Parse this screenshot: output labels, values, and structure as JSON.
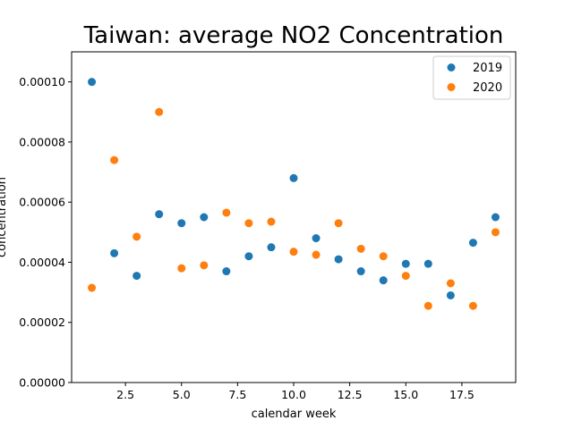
{
  "chart_data": {
    "type": "scatter",
    "title": "Taiwan: average NO2 Concentration",
    "xlabel": "calendar week",
    "ylabel": "concentration",
    "xlim": [
      0.1,
      19.9
    ],
    "ylim": [
      0,
      0.00011
    ],
    "xticks": [
      2.5,
      5.0,
      7.5,
      10.0,
      12.5,
      15.0,
      17.5
    ],
    "xtick_labels": [
      "2.5",
      "5.0",
      "7.5",
      "10.0",
      "12.5",
      "15.0",
      "17.5"
    ],
    "yticks": [
      0,
      2e-05,
      4e-05,
      6e-05,
      8e-05,
      0.0001
    ],
    "ytick_labels": [
      "0.00000",
      "0.00002",
      "0.00004",
      "0.00006",
      "0.00008",
      "0.00010"
    ],
    "grid": false,
    "legend_position": "top-right",
    "series": [
      {
        "name": "2019",
        "color": "#1f77b4",
        "x": [
          1,
          2,
          3,
          4,
          5,
          6,
          7,
          8,
          9,
          10,
          11,
          12,
          13,
          14,
          15,
          16,
          17,
          18,
          19
        ],
        "y": [
          0.0001,
          4.3e-05,
          3.55e-05,
          5.6e-05,
          5.3e-05,
          5.5e-05,
          3.7e-05,
          4.2e-05,
          4.5e-05,
          6.8e-05,
          4.8e-05,
          4.1e-05,
          3.7e-05,
          3.4e-05,
          3.95e-05,
          3.95e-05,
          2.9e-05,
          4.65e-05,
          5.5e-05
        ]
      },
      {
        "name": "2020",
        "color": "#ff7f0e",
        "x": [
          1,
          2,
          3,
          4,
          5,
          6,
          7,
          8,
          9,
          10,
          11,
          12,
          13,
          14,
          15,
          16,
          17,
          18,
          19
        ],
        "y": [
          3.15e-05,
          7.4e-05,
          4.85e-05,
          9e-05,
          3.8e-05,
          3.9e-05,
          5.65e-05,
          5.3e-05,
          5.35e-05,
          4.35e-05,
          4.25e-05,
          5.3e-05,
          4.45e-05,
          4.2e-05,
          3.55e-05,
          2.55e-05,
          3.3e-05,
          2.55e-05,
          5e-05
        ]
      }
    ]
  }
}
